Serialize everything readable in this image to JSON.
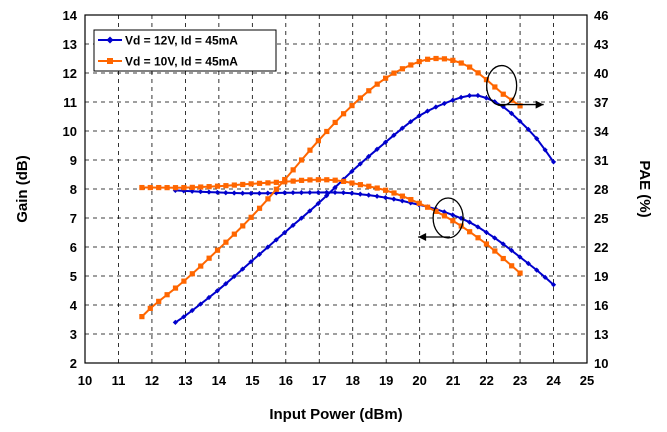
{
  "chart_data": {
    "type": "line",
    "xlabel": "Input Power (dBm)",
    "ylabel": "Gain (dB)",
    "y2label": "PAE (%)",
    "xlim": [
      10,
      25
    ],
    "ylim": [
      2,
      14
    ],
    "y2lim": [
      10,
      46
    ],
    "x_ticks": [
      "10",
      "11",
      "12",
      "13",
      "14",
      "15",
      "16",
      "17",
      "18",
      "19",
      "20",
      "21",
      "22",
      "23",
      "24",
      "25"
    ],
    "y_ticks": [
      "2",
      "3",
      "4",
      "5",
      "6",
      "7",
      "8",
      "9",
      "10",
      "11",
      "12",
      "13",
      "14"
    ],
    "y2_ticks": [
      "10",
      "13",
      "16",
      "19",
      "22",
      "25",
      "28",
      "31",
      "34",
      "37",
      "40",
      "43",
      "46"
    ],
    "grid": true,
    "legend_position": "top-left",
    "series": [
      {
        "name": "Vd = 12V, Id = 45mA",
        "color": "#0000CC",
        "marker": "diamond",
        "gain": {
          "x": [
            12.7,
            14,
            15,
            16,
            17,
            17.5,
            18,
            19,
            20,
            20.5,
            21,
            21.5,
            22,
            22.5,
            23,
            23.5,
            24
          ],
          "y": [
            7.95,
            7.88,
            7.85,
            7.87,
            7.88,
            7.88,
            7.85,
            7.7,
            7.45,
            7.3,
            7.1,
            6.85,
            6.5,
            6.1,
            5.65,
            5.2,
            4.7
          ]
        },
        "pae": {
          "x": [
            12.7,
            13,
            14,
            15,
            16,
            17,
            18,
            19,
            20,
            21,
            21.6,
            22,
            22.5,
            23,
            23.5,
            24
          ],
          "y": [
            14.2,
            14.9,
            17.6,
            20.6,
            23.6,
            26.6,
            29.9,
            32.9,
            35.6,
            37.2,
            37.7,
            37.4,
            36.5,
            35.0,
            33.2,
            30.8
          ]
        }
      },
      {
        "name": "Vd = 10V, Id = 45mA",
        "color": "#FF6600",
        "marker": "square",
        "gain": {
          "x": [
            11.7,
            12,
            13,
            14,
            15,
            16,
            16.5,
            17,
            17.5,
            18,
            19,
            20,
            21,
            22,
            22.5,
            23
          ],
          "y": [
            8.05,
            8.05,
            8.05,
            8.1,
            8.18,
            8.25,
            8.3,
            8.32,
            8.3,
            8.2,
            7.95,
            7.5,
            6.9,
            6.1,
            5.6,
            5.1
          ]
        },
        "pae": {
          "x": [
            11.7,
            12,
            13,
            14,
            15,
            16,
            17,
            18,
            19,
            20,
            20.5,
            21,
            21.5,
            22,
            22.5,
            23
          ],
          "y": [
            14.8,
            15.8,
            18.6,
            21.8,
            25.2,
            29.1,
            33.1,
            36.7,
            39.5,
            41.2,
            41.5,
            41.3,
            40.6,
            39.3,
            37.8,
            36.6
          ]
        }
      }
    ],
    "annotations": [
      {
        "type": "circle-arrow",
        "points_to": "right",
        "target": "PAE axis",
        "center": [
          22.45,
          38.7
        ]
      },
      {
        "type": "circle-arrow",
        "points_to": "left",
        "target": "Gain axis",
        "center": [
          20.85,
          7.0
        ]
      }
    ]
  }
}
